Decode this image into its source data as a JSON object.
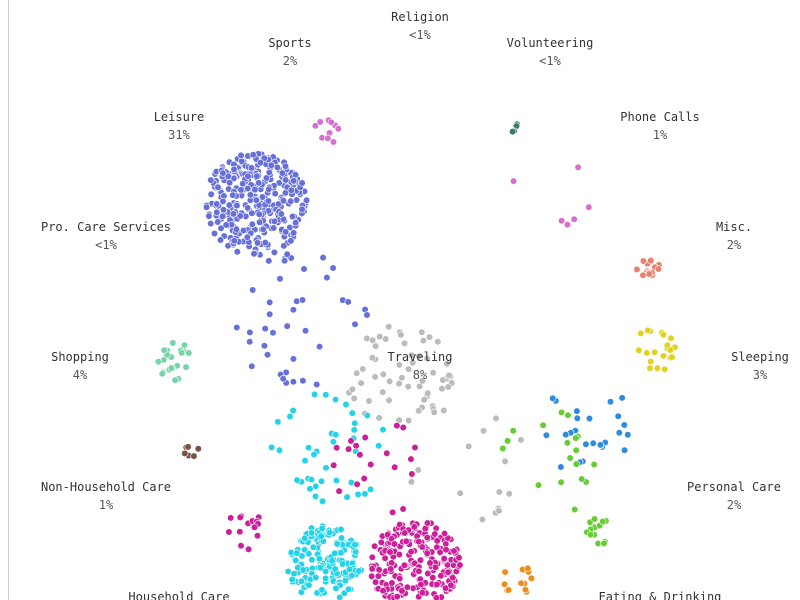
{
  "nodes": [
    {
      "label": "Religion",
      "share": "<1%"
    },
    {
      "label": "Sports",
      "share": "2%"
    },
    {
      "label": "Volunteering",
      "share": "<1%"
    },
    {
      "label": "Leisure",
      "share": "31%"
    },
    {
      "label": "Phone Calls",
      "share": "1%"
    },
    {
      "label": "Pro. Care Services",
      "share": "<1%"
    },
    {
      "label": "Misc.",
      "share": "2%"
    },
    {
      "label": "Shopping",
      "share": "4%"
    },
    {
      "label": "Traveling",
      "share": "8%"
    },
    {
      "label": "Sleeping",
      "share": "3%"
    },
    {
      "label": "Non-Household Care",
      "share": "1%"
    },
    {
      "label": "Personal Care",
      "share": "2%"
    },
    {
      "label": "Household Care",
      "share": ""
    },
    {
      "label": "Eating & Drinking",
      "share": ""
    }
  ]
}
